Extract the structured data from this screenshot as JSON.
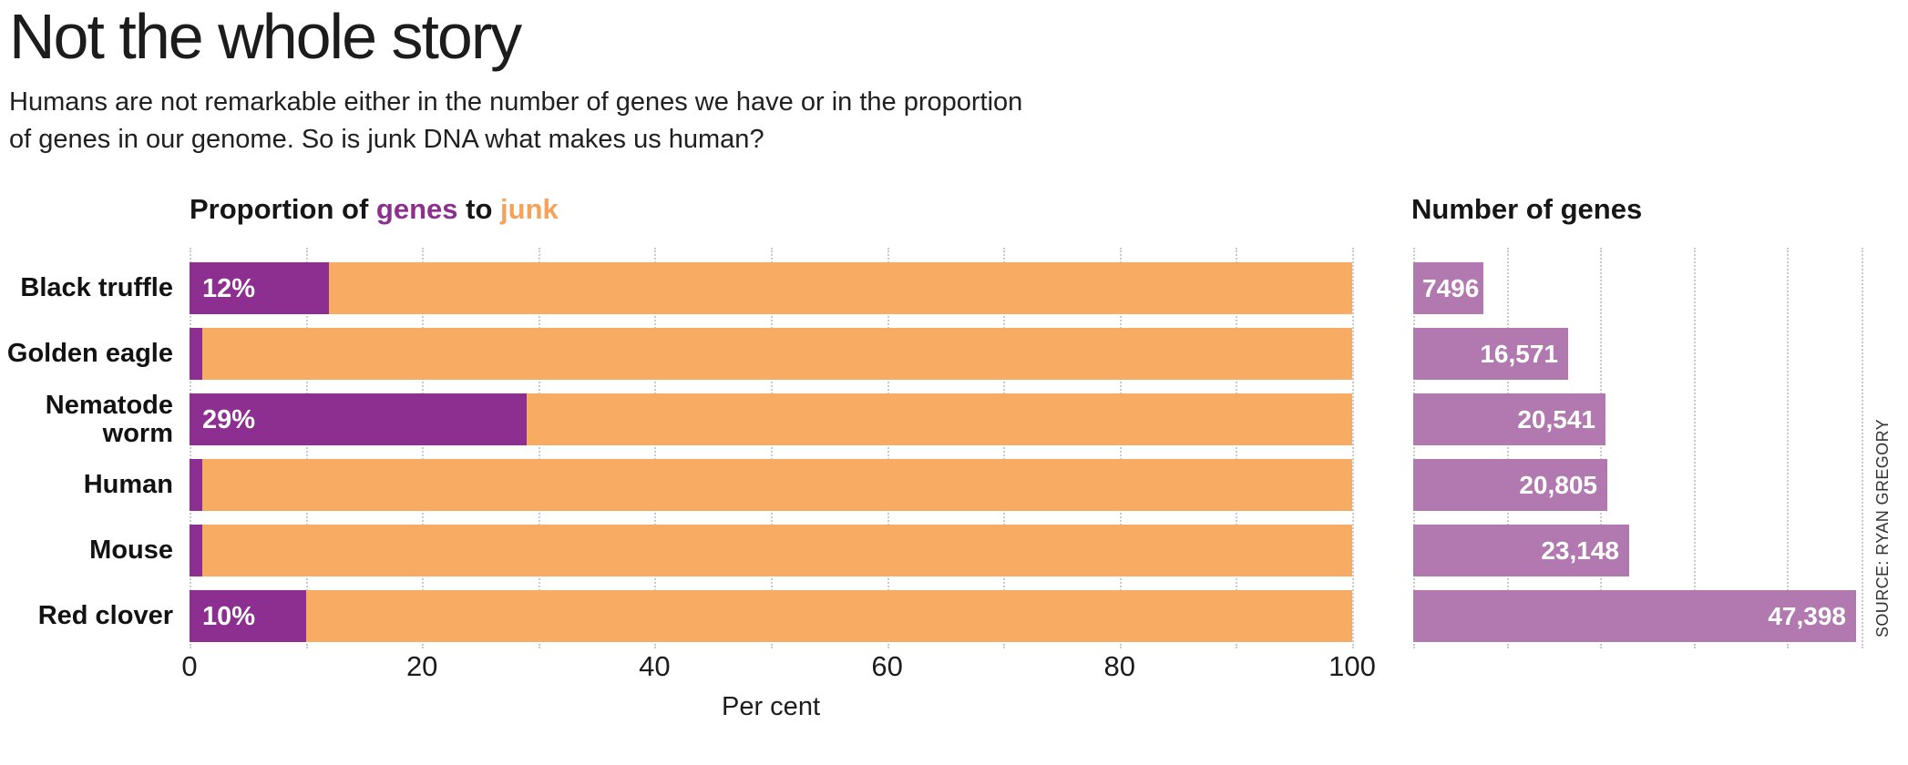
{
  "header": {
    "title": "Not the whole story",
    "subtitle_line1": "Humans are not remarkable either in the number of genes we have or in the proportion",
    "subtitle_line2": "of genes in our genome. So is junk DNA what makes us human?"
  },
  "left_chart": {
    "title_prefix": "Proportion of ",
    "title_genes_word": "genes",
    "title_middle": " to ",
    "title_junk_word": "junk",
    "axis_label": "Per cent",
    "ticks": [
      0,
      20,
      40,
      60,
      80,
      100
    ],
    "gridline_step": 10,
    "axis_max": 100
  },
  "right_chart": {
    "title": "Number of genes",
    "axis_max": 48000,
    "gridlines": [
      0,
      10000,
      20000,
      30000,
      40000,
      48000
    ]
  },
  "rows": [
    {
      "label": "Black truffle",
      "genes_pct": 12,
      "pct_label": "12%",
      "gene_count": 7496,
      "count_label": "7496",
      "count_label_align": "left"
    },
    {
      "label": "Golden eagle",
      "genes_pct": 1.1,
      "pct_label": "",
      "gene_count": 16571,
      "count_label": "16,571",
      "count_label_align": "right"
    },
    {
      "label": "Nematode worm",
      "genes_pct": 29,
      "pct_label": "29%",
      "gene_count": 20541,
      "count_label": "20,541",
      "count_label_align": "right"
    },
    {
      "label": "Human",
      "genes_pct": 1.1,
      "pct_label": "",
      "gene_count": 20805,
      "count_label": "20,805",
      "count_label_align": "right"
    },
    {
      "label": "Mouse",
      "genes_pct": 1.1,
      "pct_label": "",
      "gene_count": 23148,
      "count_label": "23,148",
      "count_label_align": "right"
    },
    {
      "label": "Red clover",
      "genes_pct": 10,
      "pct_label": "10%",
      "gene_count": 47398,
      "count_label": "47,398",
      "count_label_align": "right"
    }
  ],
  "source": "SOURCE: RYAN GREGORY",
  "colors": {
    "genes_purple": "#8d2e91",
    "junk_orange": "#f7ab63",
    "count_purple": "#b179b0",
    "accent_genes_text": "#8d2e91",
    "accent_junk_text": "#f5a25c",
    "gridline": "#c9c9c9",
    "text_dark": "#1c1c1c"
  },
  "chart_data": [
    {
      "type": "bar",
      "subtype": "horizontal-stacked",
      "title": "Proportion of genes to junk",
      "categories": [
        "Black truffle",
        "Golden eagle",
        "Nematode worm",
        "Human",
        "Mouse",
        "Red clover"
      ],
      "series": [
        {
          "name": "genes",
          "color": "#8d2e91",
          "values": [
            12,
            1.1,
            29,
            1.1,
            1.1,
            10
          ]
        },
        {
          "name": "junk",
          "color": "#f7ab63",
          "values": [
            88,
            98.9,
            71,
            98.9,
            98.9,
            90
          ]
        }
      ],
      "bar_labels": [
        "12%",
        "",
        "29%",
        "",
        "",
        "10%"
      ],
      "xlabel": "Per cent",
      "xlim": [
        0,
        100
      ],
      "xticks": [
        0,
        20,
        40,
        60,
        80,
        100
      ],
      "grid": "vertical-dotted-every-10",
      "legend_position": "none"
    },
    {
      "type": "bar",
      "subtype": "horizontal",
      "title": "Number of genes",
      "categories": [
        "Black truffle",
        "Golden eagle",
        "Nematode worm",
        "Human",
        "Mouse",
        "Red clover"
      ],
      "values": [
        7496,
        16571,
        20541,
        20805,
        23148,
        47398
      ],
      "data_labels": [
        "7496",
        "16,571",
        "20,541",
        "20,805",
        "23,148",
        "47,398"
      ],
      "color": "#b179b0",
      "xlim": [
        0,
        48000
      ],
      "xticks": [],
      "grid": "vertical-dotted-every-10000",
      "legend_position": "none"
    }
  ]
}
